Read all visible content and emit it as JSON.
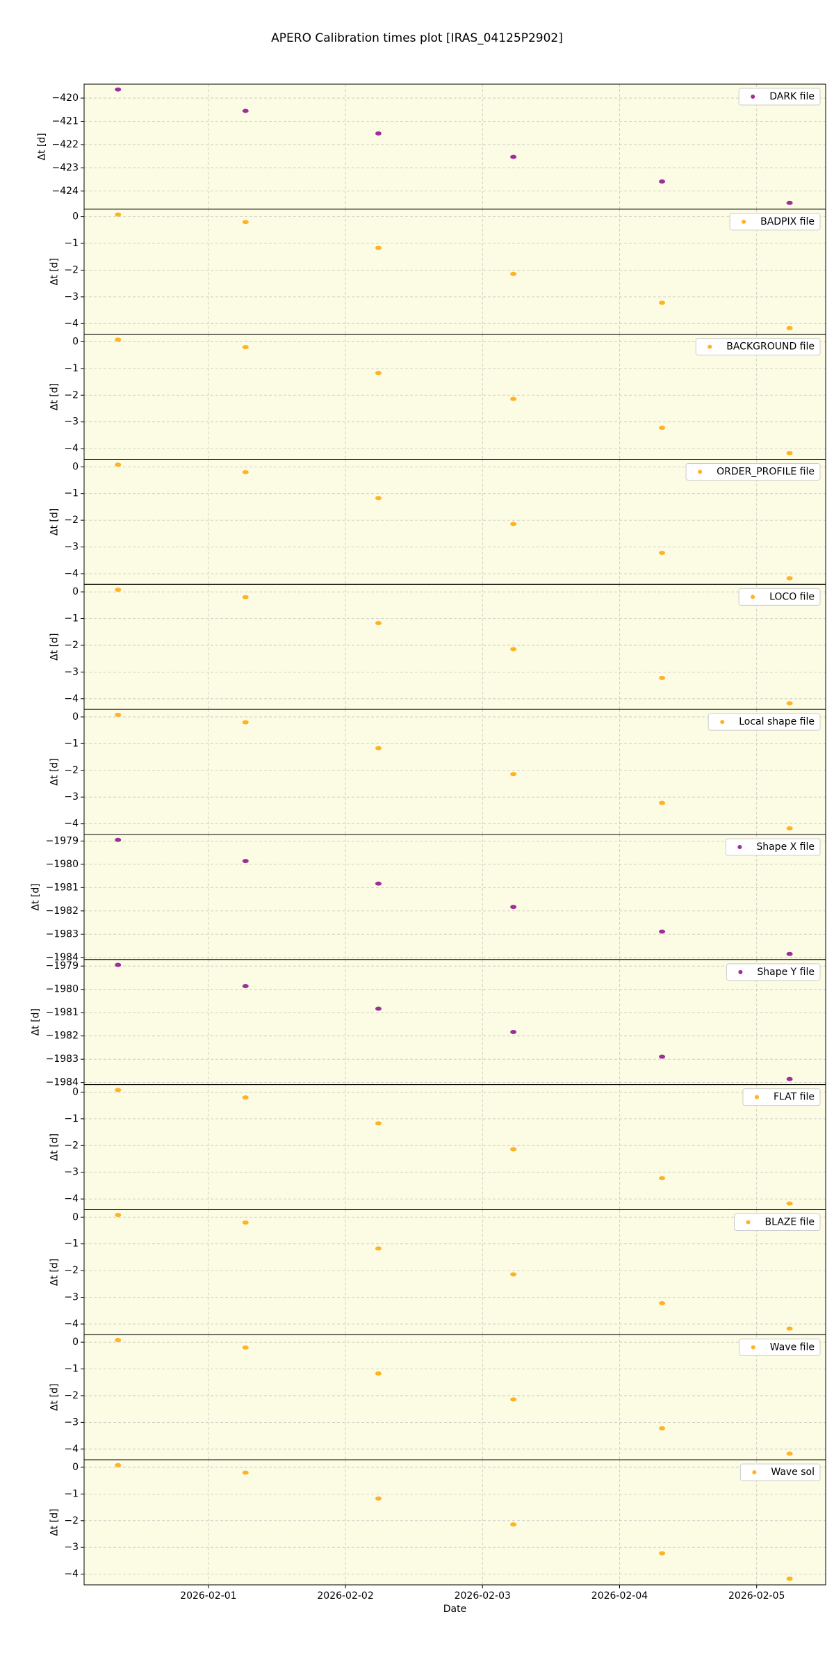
{
  "chart_data": [
    {
      "type": "scatter",
      "title": "APERO Calibration times plot [IRAS_04125P2902]",
      "ylabel": "Δt [d]",
      "grid": true,
      "legend": "upper right",
      "x": [
        "2026-01-31T08:10",
        "2026-02-01T06:30",
        "2026-02-02T05:46",
        "2026-02-03T05:24",
        "2026-02-04T07:26",
        "2026-02-05T05:46"
      ],
      "xlim": [
        "2026-01-31T02:14",
        "2026-02-05T12:05"
      ],
      "xticks": [
        "2026-02-01",
        "2026-02-02",
        "2026-02-03",
        "2026-02-04",
        "2026-02-05"
      ],
      "ylim": [
        -424.78,
        -419.4
      ],
      "yticks": [
        {
          "value": -420,
          "label": "−420"
        },
        {
          "value": -421,
          "label": "−421"
        },
        {
          "value": -422,
          "label": "−422"
        },
        {
          "value": -423,
          "label": "−423"
        },
        {
          "value": -424,
          "label": "−424"
        }
      ],
      "series": [
        {
          "name": "DARK file",
          "color": "#8b0a8b",
          "values": [
            -419.63,
            -420.55,
            -421.52,
            -422.53,
            -423.59,
            -424.51
          ]
        }
      ]
    },
    {
      "type": "scatter",
      "ylabel": "Δt [d]",
      "grid": true,
      "legend": "upper right",
      "x": [
        "2026-01-31T08:10",
        "2026-02-01T06:30",
        "2026-02-02T05:46",
        "2026-02-03T05:24",
        "2026-02-04T07:26",
        "2026-02-05T05:46"
      ],
      "xlim": [
        "2026-01-31T02:14",
        "2026-02-05T12:05"
      ],
      "xticks": [
        "2026-02-01",
        "2026-02-02",
        "2026-02-03",
        "2026-02-04",
        "2026-02-05"
      ],
      "ylim": [
        -4.4,
        0.28
      ],
      "yticks": [
        0,
        {
          "value": -1,
          "label": "−1"
        },
        {
          "value": -2,
          "label": "−2"
        },
        {
          "value": -3,
          "label": "−3"
        },
        {
          "value": -4,
          "label": "−4"
        }
      ],
      "series": [
        {
          "name": "BADPIX file",
          "color": "#ffa500",
          "values": [
            0.08,
            -0.2,
            -1.17,
            -2.14,
            -3.22,
            -4.17
          ]
        }
      ]
    },
    {
      "type": "scatter",
      "ylabel": "Δt [d]",
      "grid": true,
      "legend": "upper right",
      "x": [
        "2026-01-31T08:10",
        "2026-02-01T06:30",
        "2026-02-02T05:46",
        "2026-02-03T05:24",
        "2026-02-04T07:26",
        "2026-02-05T05:46"
      ],
      "xlim": [
        "2026-01-31T02:14",
        "2026-02-05T12:05"
      ],
      "xticks": [
        "2026-02-01",
        "2026-02-02",
        "2026-02-03",
        "2026-02-04",
        "2026-02-05"
      ],
      "ylim": [
        -4.4,
        0.28
      ],
      "yticks": [
        0,
        {
          "value": -1,
          "label": "−1"
        },
        {
          "value": -2,
          "label": "−2"
        },
        {
          "value": -3,
          "label": "−3"
        },
        {
          "value": -4,
          "label": "−4"
        }
      ],
      "series": [
        {
          "name": "BACKGROUND file",
          "color": "#ffa500",
          "values": [
            0.08,
            -0.2,
            -1.17,
            -2.14,
            -3.22,
            -4.17
          ]
        }
      ]
    },
    {
      "type": "scatter",
      "ylabel": "Δt [d]",
      "grid": true,
      "legend": "upper right",
      "x": [
        "2026-01-31T08:10",
        "2026-02-01T06:30",
        "2026-02-02T05:46",
        "2026-02-03T05:24",
        "2026-02-04T07:26",
        "2026-02-05T05:46"
      ],
      "xlim": [
        "2026-01-31T02:14",
        "2026-02-05T12:05"
      ],
      "xticks": [
        "2026-02-01",
        "2026-02-02",
        "2026-02-03",
        "2026-02-04",
        "2026-02-05"
      ],
      "ylim": [
        -4.4,
        0.28
      ],
      "yticks": [
        0,
        {
          "value": -1,
          "label": "−1"
        },
        {
          "value": -2,
          "label": "−2"
        },
        {
          "value": -3,
          "label": "−3"
        },
        {
          "value": -4,
          "label": "−4"
        }
      ],
      "series": [
        {
          "name": "ORDER_PROFILE file",
          "color": "#ffa500",
          "values": [
            0.08,
            -0.2,
            -1.17,
            -2.14,
            -3.22,
            -4.17
          ]
        }
      ]
    },
    {
      "type": "scatter",
      "ylabel": "Δt [d]",
      "grid": true,
      "legend": "upper right",
      "x": [
        "2026-01-31T08:10",
        "2026-02-01T06:30",
        "2026-02-02T05:46",
        "2026-02-03T05:24",
        "2026-02-04T07:26",
        "2026-02-05T05:46"
      ],
      "xlim": [
        "2026-01-31T02:14",
        "2026-02-05T12:05"
      ],
      "xticks": [
        "2026-02-01",
        "2026-02-02",
        "2026-02-03",
        "2026-02-04",
        "2026-02-05"
      ],
      "ylim": [
        -4.4,
        0.28
      ],
      "yticks": [
        0,
        {
          "value": -1,
          "label": "−1"
        },
        {
          "value": -2,
          "label": "−2"
        },
        {
          "value": -3,
          "label": "−3"
        },
        {
          "value": -4,
          "label": "−4"
        }
      ],
      "series": [
        {
          "name": "LOCO file",
          "color": "#ffa500",
          "values": [
            0.08,
            -0.2,
            -1.17,
            -2.14,
            -3.22,
            -4.17
          ]
        }
      ]
    },
    {
      "type": "scatter",
      "ylabel": "Δt [d]",
      "grid": true,
      "legend": "upper right",
      "x": [
        "2026-01-31T08:10",
        "2026-02-01T06:30",
        "2026-02-02T05:46",
        "2026-02-03T05:24",
        "2026-02-04T07:26",
        "2026-02-05T05:46"
      ],
      "xlim": [
        "2026-01-31T02:14",
        "2026-02-05T12:05"
      ],
      "xticks": [
        "2026-02-01",
        "2026-02-02",
        "2026-02-03",
        "2026-02-04",
        "2026-02-05"
      ],
      "ylim": [
        -4.4,
        0.28
      ],
      "yticks": [
        0,
        {
          "value": -1,
          "label": "−1"
        },
        {
          "value": -2,
          "label": "−2"
        },
        {
          "value": -3,
          "label": "−3"
        },
        {
          "value": -4,
          "label": "−4"
        }
      ],
      "series": [
        {
          "name": "Local shape file",
          "color": "#ffa500",
          "values": [
            0.08,
            -0.2,
            -1.17,
            -2.14,
            -3.22,
            -4.17
          ]
        }
      ]
    },
    {
      "type": "scatter",
      "ylabel": "Δt [d]",
      "grid": true,
      "legend": "upper right",
      "x": [
        "2026-01-31T08:10",
        "2026-02-01T06:30",
        "2026-02-02T05:46",
        "2026-02-03T05:24",
        "2026-02-04T07:26",
        "2026-02-05T05:46"
      ],
      "xlim": [
        "2026-01-31T02:14",
        "2026-02-05T12:05"
      ],
      "xticks": [
        "2026-02-01",
        "2026-02-02",
        "2026-02-03",
        "2026-02-04",
        "2026-02-05"
      ],
      "ylim": [
        -1984.09,
        -1978.72
      ],
      "yticks": [
        {
          "value": -1979,
          "label": "−1979"
        },
        {
          "value": -1980,
          "label": "−1980"
        },
        {
          "value": -1981,
          "label": "−1981"
        },
        {
          "value": -1982,
          "label": "−1982"
        },
        {
          "value": -1983,
          "label": "−1983"
        },
        {
          "value": -1984,
          "label": "−1984"
        }
      ],
      "series": [
        {
          "name": "Shape X file",
          "color": "#8b0a8b",
          "values": [
            -1978.95,
            -1979.86,
            -1980.83,
            -1981.83,
            -1982.89,
            -1983.85
          ]
        }
      ]
    },
    {
      "type": "scatter",
      "ylabel": "Δt [d]",
      "grid": true,
      "legend": "upper right",
      "x": [
        "2026-01-31T08:10",
        "2026-02-01T06:30",
        "2026-02-02T05:46",
        "2026-02-03T05:24",
        "2026-02-04T07:26",
        "2026-02-05T05:46"
      ],
      "xlim": [
        "2026-01-31T02:14",
        "2026-02-05T12:05"
      ],
      "xticks": [
        "2026-02-01",
        "2026-02-02",
        "2026-02-03",
        "2026-02-04",
        "2026-02-05"
      ],
      "ylim": [
        -1984.09,
        -1978.72
      ],
      "yticks": [
        {
          "value": -1979,
          "label": "−1979"
        },
        {
          "value": -1980,
          "label": "−1980"
        },
        {
          "value": -1981,
          "label": "−1981"
        },
        {
          "value": -1982,
          "label": "−1982"
        },
        {
          "value": -1983,
          "label": "−1983"
        },
        {
          "value": -1984,
          "label": "−1984"
        }
      ],
      "series": [
        {
          "name": "Shape Y file",
          "color": "#8b0a8b",
          "values": [
            -1978.95,
            -1979.86,
            -1980.83,
            -1981.83,
            -1982.89,
            -1983.85
          ]
        }
      ]
    },
    {
      "type": "scatter",
      "ylabel": "Δt [d]",
      "grid": true,
      "legend": "upper right",
      "x": [
        "2026-01-31T08:10",
        "2026-02-01T06:30",
        "2026-02-02T05:46",
        "2026-02-03T05:24",
        "2026-02-04T07:26",
        "2026-02-05T05:46"
      ],
      "xlim": [
        "2026-01-31T02:14",
        "2026-02-05T12:05"
      ],
      "xticks": [
        "2026-02-01",
        "2026-02-02",
        "2026-02-03",
        "2026-02-04",
        "2026-02-05"
      ],
      "ylim": [
        -4.4,
        0.28
      ],
      "yticks": [
        0,
        {
          "value": -1,
          "label": "−1"
        },
        {
          "value": -2,
          "label": "−2"
        },
        {
          "value": -3,
          "label": "−3"
        },
        {
          "value": -4,
          "label": "−4"
        }
      ],
      "series": [
        {
          "name": "FLAT file",
          "color": "#ffa500",
          "values": [
            0.08,
            -0.2,
            -1.17,
            -2.14,
            -3.22,
            -4.17
          ]
        }
      ]
    },
    {
      "type": "scatter",
      "ylabel": "Δt [d]",
      "grid": true,
      "legend": "upper right",
      "x": [
        "2026-01-31T08:10",
        "2026-02-01T06:30",
        "2026-02-02T05:46",
        "2026-02-03T05:24",
        "2026-02-04T07:26",
        "2026-02-05T05:46"
      ],
      "xlim": [
        "2026-01-31T02:14",
        "2026-02-05T12:05"
      ],
      "xticks": [
        "2026-02-01",
        "2026-02-02",
        "2026-02-03",
        "2026-02-04",
        "2026-02-05"
      ],
      "ylim": [
        -4.4,
        0.28
      ],
      "yticks": [
        0,
        {
          "value": -1,
          "label": "−1"
        },
        {
          "value": -2,
          "label": "−2"
        },
        {
          "value": -3,
          "label": "−3"
        },
        {
          "value": -4,
          "label": "−4"
        }
      ],
      "series": [
        {
          "name": "BLAZE file",
          "color": "#ffa500",
          "values": [
            0.08,
            -0.2,
            -1.17,
            -2.14,
            -3.22,
            -4.17
          ]
        }
      ]
    },
    {
      "type": "scatter",
      "ylabel": "Δt [d]",
      "grid": true,
      "legend": "upper right",
      "x": [
        "2026-01-31T08:10",
        "2026-02-01T06:30",
        "2026-02-02T05:46",
        "2026-02-03T05:24",
        "2026-02-04T07:26",
        "2026-02-05T05:46"
      ],
      "xlim": [
        "2026-01-31T02:14",
        "2026-02-05T12:05"
      ],
      "xticks": [
        "2026-02-01",
        "2026-02-02",
        "2026-02-03",
        "2026-02-04",
        "2026-02-05"
      ],
      "ylim": [
        -4.4,
        0.28
      ],
      "yticks": [
        0,
        {
          "value": -1,
          "label": "−1"
        },
        {
          "value": -2,
          "label": "−2"
        },
        {
          "value": -3,
          "label": "−3"
        },
        {
          "value": -4,
          "label": "−4"
        }
      ],
      "series": [
        {
          "name": "Wave file",
          "color": "#ffa500",
          "values": [
            0.08,
            -0.2,
            -1.17,
            -2.14,
            -3.22,
            -4.17
          ]
        }
      ]
    },
    {
      "type": "scatter",
      "ylabel": "Δt [d]",
      "xlabel": "Date",
      "grid": true,
      "legend": "upper right",
      "x": [
        "2026-01-31T08:10",
        "2026-02-01T06:30",
        "2026-02-02T05:46",
        "2026-02-03T05:24",
        "2026-02-04T07:26",
        "2026-02-05T05:46"
      ],
      "xlim": [
        "2026-01-31T02:14",
        "2026-02-05T12:05"
      ],
      "xticks": [
        "2026-02-01",
        "2026-02-02",
        "2026-02-03",
        "2026-02-04",
        "2026-02-05"
      ],
      "ylim": [
        -4.4,
        0.28
      ],
      "yticks": [
        0,
        {
          "value": -1,
          "label": "−1"
        },
        {
          "value": -2,
          "label": "−2"
        },
        {
          "value": -3,
          "label": "−3"
        },
        {
          "value": -4,
          "label": "−4"
        }
      ],
      "series": [
        {
          "name": "Wave sol",
          "color": "#ffa500",
          "values": [
            0.08,
            -0.2,
            -1.17,
            -2.14,
            -3.22,
            -4.17
          ]
        }
      ]
    }
  ]
}
